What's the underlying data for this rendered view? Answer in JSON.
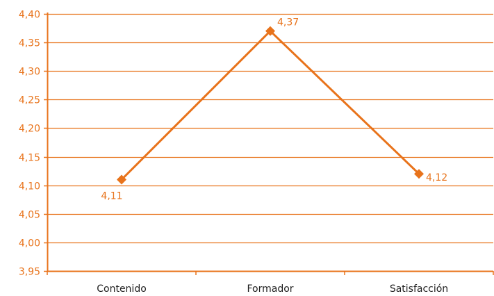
{
  "chart_data": {
    "type": "line",
    "title": "",
    "xlabel": "",
    "ylabel": "",
    "categories": [
      "Contenido",
      "Formador",
      "Satisfacción"
    ],
    "series": [
      {
        "values": [
          4.11,
          4.37,
          4.12
        ],
        "data_labels": [
          "4,11",
          "4,37",
          "4,12"
        ]
      }
    ],
    "ylim": [
      3.95,
      4.4
    ],
    "y_ticks": [
      "3,95",
      "4,00",
      "4,05",
      "4,10",
      "4,15",
      "4,20",
      "4,25",
      "4,30",
      "4,35",
      "4,40"
    ],
    "y_tick_values": [
      3.95,
      4.0,
      4.05,
      4.1,
      4.15,
      4.2,
      4.25,
      4.3,
      4.35,
      4.4
    ],
    "grid": true,
    "legend": "none",
    "marker": "diamond",
    "colors": {
      "series": "#e8731b",
      "grid": "#e8731b",
      "axis": "#e8731b",
      "tick_label": "#e8731b",
      "category_label": "#1f1f1f",
      "background": "#ffffff"
    }
  }
}
